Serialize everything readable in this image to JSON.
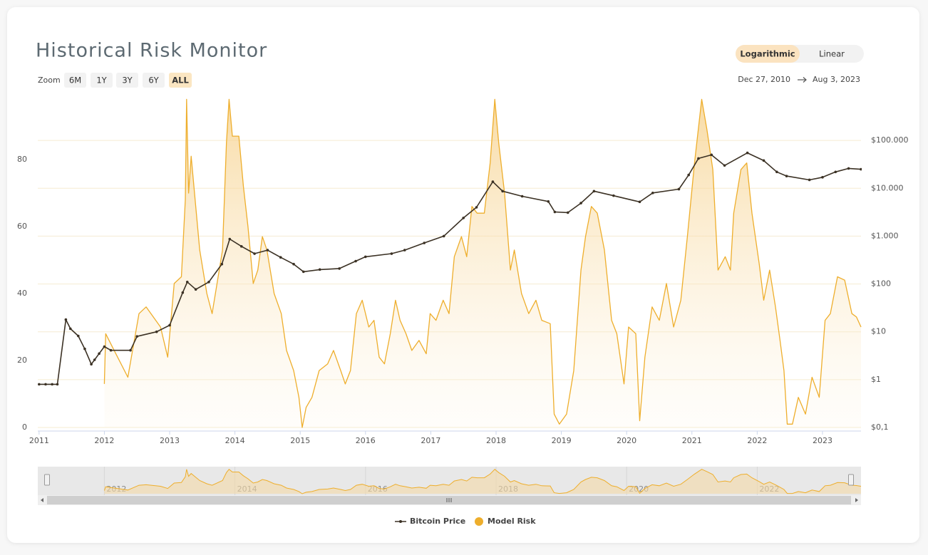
{
  "ui": {
    "title": "Historical Risk Monitor",
    "zoom_label": "Zoom",
    "zoom_buttons": [
      "6M",
      "1Y",
      "3Y",
      "6Y",
      "ALL"
    ],
    "zoom_selected": 4,
    "scale_buttons": [
      "Logarithmic",
      "Linear"
    ],
    "scale_selected": 0,
    "date_from": "Dec 27, 2010",
    "date_to": "Aug 3, 2023"
  },
  "chart_data": {
    "type": "line",
    "xlim": [
      2010.98,
      2023.59
    ],
    "xticks": [
      2011,
      2012,
      2013,
      2014,
      2015,
      2016,
      2017,
      2018,
      2019,
      2020,
      2021,
      2022,
      2023
    ],
    "ylim": [
      0,
      100
    ],
    "yticks": [
      0,
      20,
      40,
      60,
      80
    ],
    "y2lim": [
      0.1,
      1000000
    ],
    "y2log": true,
    "y2ticks": [
      {
        "value": 0.1,
        "label": "$0,1"
      },
      {
        "value": 1,
        "label": "$1"
      },
      {
        "value": 10,
        "label": "$10"
      },
      {
        "value": 100,
        "label": "$100"
      },
      {
        "value": 1000,
        "label": "$1.000"
      },
      {
        "value": 10000,
        "label": "$10.000"
      },
      {
        "value": 100000,
        "label": "$100.000"
      }
    ],
    "grid": true,
    "navigator_ticks": [
      2012,
      2014,
      2016,
      2018,
      2020,
      2022
    ],
    "series": [
      {
        "name": "Bitcoin Price",
        "axis": "y2",
        "color": "#3b3124",
        "x": [
          2011.0,
          2011.1,
          2011.2,
          2011.28,
          2011.41,
          2011.48,
          2011.6,
          2011.7,
          2011.8,
          2011.85,
          2011.92,
          2012.0,
          2012.1,
          2012.4,
          2012.5,
          2012.8,
          2013.0,
          2013.2,
          2013.27,
          2013.4,
          2013.6,
          2013.8,
          2013.92,
          2014.1,
          2014.3,
          2014.5,
          2014.7,
          2014.9,
          2015.05,
          2015.3,
          2015.6,
          2015.85,
          2016.0,
          2016.4,
          2016.6,
          2016.9,
          2017.2,
          2017.5,
          2017.7,
          2017.95,
          2018.1,
          2018.4,
          2018.8,
          2018.9,
          2019.1,
          2019.3,
          2019.5,
          2019.8,
          2020.2,
          2020.4,
          2020.8,
          2020.95,
          2021.1,
          2021.3,
          2021.5,
          2021.85,
          2022.1,
          2022.3,
          2022.45,
          2022.8,
          2023.0,
          2023.2,
          2023.4,
          2023.59
        ],
        "values": [
          0.8,
          0.8,
          0.8,
          0.8,
          18,
          11.6,
          8.2,
          4.4,
          2.1,
          2.6,
          3.5,
          4.9,
          4.1,
          4.1,
          8,
          10,
          13.7,
          66,
          110,
          77,
          110,
          260,
          870,
          610,
          430,
          510,
          360,
          260,
          180,
          200,
          210,
          300,
          370,
          430,
          510,
          720,
          1000,
          2400,
          4000,
          13700,
          8700,
          6800,
          5300,
          3200,
          3100,
          4900,
          8700,
          7000,
          5200,
          8000,
          9600,
          19000,
          42000,
          50000,
          30000,
          55000,
          38000,
          22000,
          18000,
          15000,
          17000,
          22000,
          26000,
          25000
        ]
      },
      {
        "name": "Model Risk",
        "axis": "y",
        "color": "#eeae2c",
        "x": [
          2012.0,
          2012.02,
          2012.15,
          2012.36,
          2012.53,
          2012.64,
          2012.86,
          2012.97,
          2013.07,
          2013.18,
          2013.24,
          2013.26,
          2013.29,
          2013.33,
          2013.46,
          2013.57,
          2013.65,
          2013.81,
          2013.87,
          2013.91,
          2013.96,
          2014.06,
          2014.13,
          2014.2,
          2014.28,
          2014.35,
          2014.42,
          2014.49,
          2014.6,
          2014.71,
          2014.79,
          2014.9,
          2014.98,
          2015.03,
          2015.09,
          2015.18,
          2015.29,
          2015.42,
          2015.51,
          2015.62,
          2015.69,
          2015.77,
          2015.86,
          2015.95,
          2016.05,
          2016.13,
          2016.21,
          2016.29,
          2016.38,
          2016.46,
          2016.53,
          2016.62,
          2016.71,
          2016.82,
          2016.93,
          2016.99,
          2017.08,
          2017.19,
          2017.28,
          2017.36,
          2017.47,
          2017.55,
          2017.63,
          2017.71,
          2017.82,
          2017.91,
          2017.98,
          2018.04,
          2018.13,
          2018.22,
          2018.28,
          2018.39,
          2018.5,
          2018.61,
          2018.7,
          2018.83,
          2018.89,
          2018.97,
          2019.08,
          2019.19,
          2019.3,
          2019.37,
          2019.46,
          2019.55,
          2019.66,
          2019.77,
          2019.85,
          2019.96,
          2020.03,
          2020.14,
          2020.2,
          2020.28,
          2020.39,
          2020.5,
          2020.61,
          2020.72,
          2020.83,
          2020.93,
          2021.04,
          2021.15,
          2021.23,
          2021.32,
          2021.4,
          2021.51,
          2021.59,
          2021.64,
          2021.75,
          2021.84,
          2021.92,
          2022.03,
          2022.1,
          2022.19,
          2022.28,
          2022.35,
          2022.41,
          2022.46,
          2022.54,
          2022.63,
          2022.74,
          2022.84,
          2022.95,
          2023.04,
          2023.12,
          2023.23,
          2023.34,
          2023.45,
          2023.52,
          2023.59
        ],
        "values": [
          13,
          28,
          23,
          15,
          34,
          36,
          30,
          21,
          43,
          45,
          68,
          98,
          70,
          81,
          53,
          40,
          34,
          53,
          85,
          98,
          87,
          87,
          72,
          60,
          43,
          47,
          57,
          53,
          40,
          34,
          23,
          17,
          9,
          0,
          6,
          9,
          17,
          19,
          23,
          17,
          13,
          17,
          34,
          38,
          30,
          32,
          21,
          19,
          28,
          38,
          32,
          28,
          23,
          26,
          22,
          34,
          32,
          38,
          34,
          51,
          57,
          51,
          66,
          64,
          64,
          79,
          98,
          85,
          70,
          47,
          53,
          40,
          34,
          38,
          32,
          31,
          4,
          1,
          4,
          17,
          47,
          57,
          66,
          64,
          53,
          32,
          28,
          13,
          30,
          28,
          2,
          21,
          36,
          32,
          43,
          30,
          38,
          57,
          79,
          98,
          89,
          77,
          47,
          51,
          47,
          64,
          77,
          79,
          64,
          49,
          38,
          47,
          36,
          26,
          17,
          1,
          1,
          9,
          4,
          15,
          9,
          32,
          34,
          45,
          44,
          34,
          33,
          30
        ]
      }
    ]
  }
}
